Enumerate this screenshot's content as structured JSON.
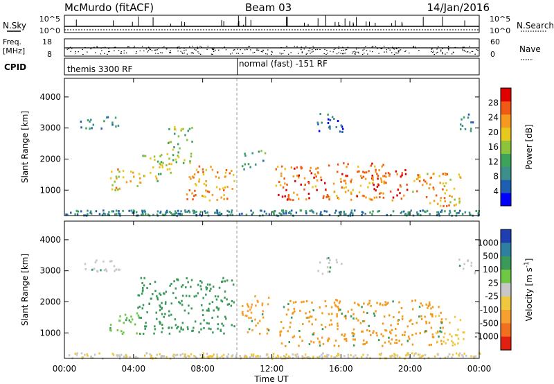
{
  "header": {
    "station": "McMurdo (fitACF)",
    "beam": "Beam 03",
    "date": "14/Jan/2016"
  },
  "strip_panel": {
    "left_label": "N.Sky",
    "right_label": "N.Search",
    "left_ticks": [
      "10^5",
      "10^0"
    ],
    "right_ticks": [
      "10^5",
      "10^0"
    ]
  },
  "freq_panel": {
    "left_label_1": "Freq.",
    "left_label_2": "[MHz]",
    "left_ticks": [
      "18",
      "8"
    ],
    "right_label": "Nave",
    "right_ticks": [
      "60",
      "0"
    ]
  },
  "cpid_panel": {
    "label": "CPID",
    "modes": [
      {
        "text": "themis 3300 RF",
        "start_hour": 0
      },
      {
        "text": "normal (fast) -151 RF",
        "start_hour": 10
      }
    ]
  },
  "chart_data": [
    {
      "type": "heatmap",
      "name": "power",
      "ylabel": "Slant Range [km]",
      "xlabel": "Time UT",
      "xlim_hours": [
        0,
        24
      ],
      "ylim_km": [
        180,
        4600
      ],
      "x_ticks": [
        "00:00",
        "04:00",
        "08:00",
        "12:00",
        "16:00",
        "20:00",
        "00:00"
      ],
      "x_tick_hours": [
        0,
        4,
        8,
        12,
        16,
        20,
        24
      ],
      "y_ticks": [
        1000,
        2000,
        3000,
        4000
      ],
      "colorbar": {
        "label": "Power [dB]",
        "range": [
          0,
          32
        ],
        "ticks": [
          "4",
          "8",
          "12",
          "16",
          "20",
          "24",
          "28"
        ],
        "tick_values": [
          4,
          8,
          12,
          16,
          20,
          24,
          28
        ],
        "colors": [
          "#0000ff",
          "#1f5fb0",
          "#3c8f8a",
          "#3da35b",
          "#8cc43c",
          "#e8c81e",
          "#f59a1e",
          "#f05a14",
          "#e00000"
        ]
      },
      "echo_regions": [
        {
          "t0": 0.9,
          "t1": 3.2,
          "r0": 3000,
          "r1": 3500,
          "level": 0.25
        },
        {
          "t0": 2.6,
          "t1": 4.4,
          "r0": 1000,
          "r1": 1700,
          "level": 0.65
        },
        {
          "t0": 4.5,
          "t1": 6.3,
          "r0": 1300,
          "r1": 2200,
          "level": 0.55
        },
        {
          "t0": 5.9,
          "t1": 7.4,
          "r0": 1900,
          "r1": 3100,
          "level": 0.45
        },
        {
          "t0": 7.0,
          "t1": 9.8,
          "r0": 700,
          "r1": 1800,
          "level": 0.75
        },
        {
          "t0": 10.2,
          "t1": 11.6,
          "r0": 1700,
          "r1": 2300,
          "level": 0.35
        },
        {
          "t0": 12.2,
          "t1": 14.2,
          "r0": 700,
          "r1": 1800,
          "level": 0.85
        },
        {
          "t0": 14.1,
          "t1": 18.6,
          "r0": 700,
          "r1": 1900,
          "level": 0.8
        },
        {
          "t0": 17.6,
          "t1": 19.8,
          "r0": 700,
          "r1": 1700,
          "level": 0.9
        },
        {
          "t0": 20.1,
          "t1": 22.9,
          "r0": 500,
          "r1": 1600,
          "level": 0.7
        },
        {
          "t0": 14.6,
          "t1": 16.1,
          "r0": 2900,
          "r1": 3500,
          "level": 0.2
        },
        {
          "t0": 22.8,
          "t1": 23.8,
          "r0": 2900,
          "r1": 3500,
          "level": 0.25
        }
      ]
    },
    {
      "type": "heatmap",
      "name": "velocity",
      "ylabel": "Slant Range [km]",
      "xlabel": "Time UT",
      "xlim_hours": [
        0,
        24
      ],
      "ylim_km": [
        180,
        4600
      ],
      "x_ticks": [
        "00:00",
        "04:00",
        "08:00",
        "12:00",
        "16:00",
        "20:00",
        "00:00"
      ],
      "x_tick_hours": [
        0,
        4,
        8,
        12,
        16,
        20,
        24
      ],
      "y_ticks": [
        1000,
        2000,
        3000,
        4000
      ],
      "colorbar": {
        "label": "Velocity [m s^-1]",
        "ticks": [
          "1000",
          "500",
          "100",
          "25",
          "-25",
          "-100",
          "-500",
          "-1000"
        ],
        "colors": [
          "#1f3fb0",
          "#2f7fa0",
          "#3b9a5a",
          "#6ec843",
          "#c8c8c8",
          "#f0c840",
          "#f5a030",
          "#f07020",
          "#e02010"
        ]
      },
      "echo_regions": [
        {
          "t0": 0.9,
          "t1": 3.2,
          "r0": 3000,
          "r1": 3500,
          "color": "#c8c8c8"
        },
        {
          "t0": 2.6,
          "t1": 4.4,
          "r0": 1000,
          "r1": 1700,
          "color": "#6ec843"
        },
        {
          "t0": 4.2,
          "t1": 9.8,
          "r0": 1000,
          "r1": 2800,
          "color": "#3b9a5a"
        },
        {
          "t0": 10.2,
          "t1": 11.8,
          "r0": 1000,
          "r1": 2300,
          "color": "#f5a030"
        },
        {
          "t0": 12.4,
          "t1": 21.9,
          "r0": 600,
          "r1": 2100,
          "color": "#f59a1e"
        },
        {
          "t0": 21.3,
          "t1": 23.2,
          "r0": 600,
          "r1": 1600,
          "color": "#f0c840"
        },
        {
          "t0": 14.6,
          "t1": 16.1,
          "r0": 2900,
          "r1": 3500,
          "color": "#c8c8c8"
        },
        {
          "t0": 22.8,
          "t1": 23.8,
          "r0": 2900,
          "r1": 3500,
          "color": "#c8c8c8"
        }
      ]
    }
  ]
}
